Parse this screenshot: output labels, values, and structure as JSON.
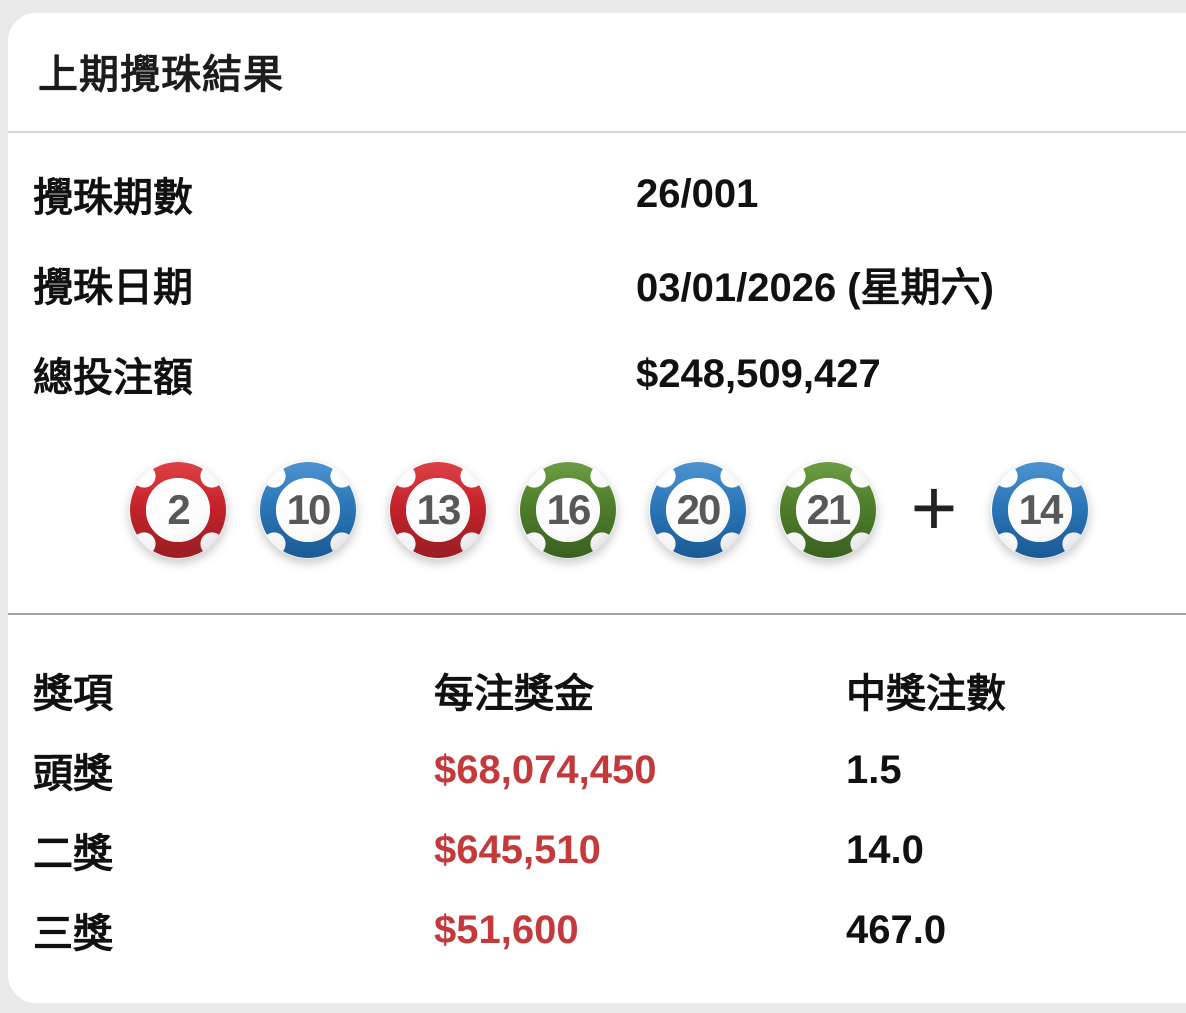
{
  "page": {
    "title": "上期攪珠結果"
  },
  "info": {
    "rows": [
      {
        "label": "攪珠期數",
        "value": "26/001"
      },
      {
        "label": "攪珠日期",
        "value": "03/01/2026 (星期六)"
      },
      {
        "label": "總投注額",
        "value": "$248,509,427"
      }
    ]
  },
  "draw": {
    "numbers": [
      {
        "number": "2",
        "color": "red"
      },
      {
        "number": "10",
        "color": "blue"
      },
      {
        "number": "13",
        "color": "red"
      },
      {
        "number": "16",
        "color": "green"
      },
      {
        "number": "20",
        "color": "blue"
      },
      {
        "number": "21",
        "color": "green"
      }
    ],
    "plus_sign": "+",
    "extra_number": {
      "number": "14",
      "color": "blue"
    }
  },
  "prizes": {
    "headers": [
      "獎項",
      "每注獎金",
      "中獎注數"
    ],
    "rows": [
      {
        "tier": "頭獎",
        "amount": "$68,074,450",
        "units": "1.5"
      },
      {
        "tier": "二獎",
        "amount": "$645,510",
        "units": "14.0"
      },
      {
        "tier": "三獎",
        "amount": "$51,600",
        "units": "467.0"
      }
    ]
  },
  "colors": {
    "amount_text": "#c43a3c",
    "ball_number_text": "#58585a",
    "ball_rings": {
      "red": {
        "light": "#dd4146",
        "base": "#c5232b",
        "dark": "#991d23"
      },
      "blue": {
        "light": "#4e93d0",
        "base": "#2a76b8",
        "dark": "#1b5a94"
      },
      "green": {
        "light": "#6d9d45",
        "base": "#4e7d2b",
        "dark": "#3a6120"
      }
    }
  }
}
